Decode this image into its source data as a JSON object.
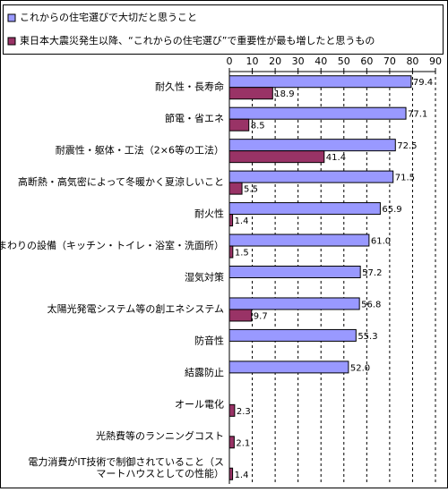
{
  "chart_data": {
    "type": "bar",
    "orientation": "horizontal",
    "categories": [
      "耐久性・長寿命",
      "節電・省エネ",
      "耐震性・躯体・工法（2×6等の工法）",
      "高断熱・高気密によって冬暖かく夏涼しいこと",
      "耐火性",
      "水まわりの設備（キッチン・トイレ・浴室・洗面所）",
      "湿気対策",
      "太陽光発電システム等の創エネシステム",
      "防音性",
      "結露防止",
      "オール電化",
      "光熱費等のランニングコスト",
      "電力消費がIT技術で制御されていること（ス\nマートハウスとしての性能）"
    ],
    "series": [
      {
        "name": "これからの住宅選びで大切だと思うこと",
        "color": "#9999ff",
        "values": [
          79.4,
          77.1,
          72.5,
          71.5,
          65.9,
          61.0,
          57.2,
          56.8,
          55.3,
          52.0,
          null,
          null,
          null
        ],
        "value_labels": [
          "79.4",
          "77.1",
          "72.5",
          "71.5",
          "65.9",
          "61.0",
          "57.2",
          "56.8",
          "55.3",
          "52.0",
          null,
          null,
          null
        ]
      },
      {
        "name": "東日本大震災発生以降、“これからの住宅選び”で重要性が最も増したと思うもの",
        "color": "#993366",
        "values": [
          18.9,
          8.5,
          41.4,
          5.5,
          1.4,
          1.5,
          null,
          9.7,
          null,
          null,
          2.3,
          2.1,
          1.4
        ]
      }
    ],
    "xlim": [
      0,
      90
    ],
    "xticks": [
      0,
      10,
      20,
      30,
      40,
      50,
      60,
      70,
      80,
      90
    ],
    "grid": true
  }
}
